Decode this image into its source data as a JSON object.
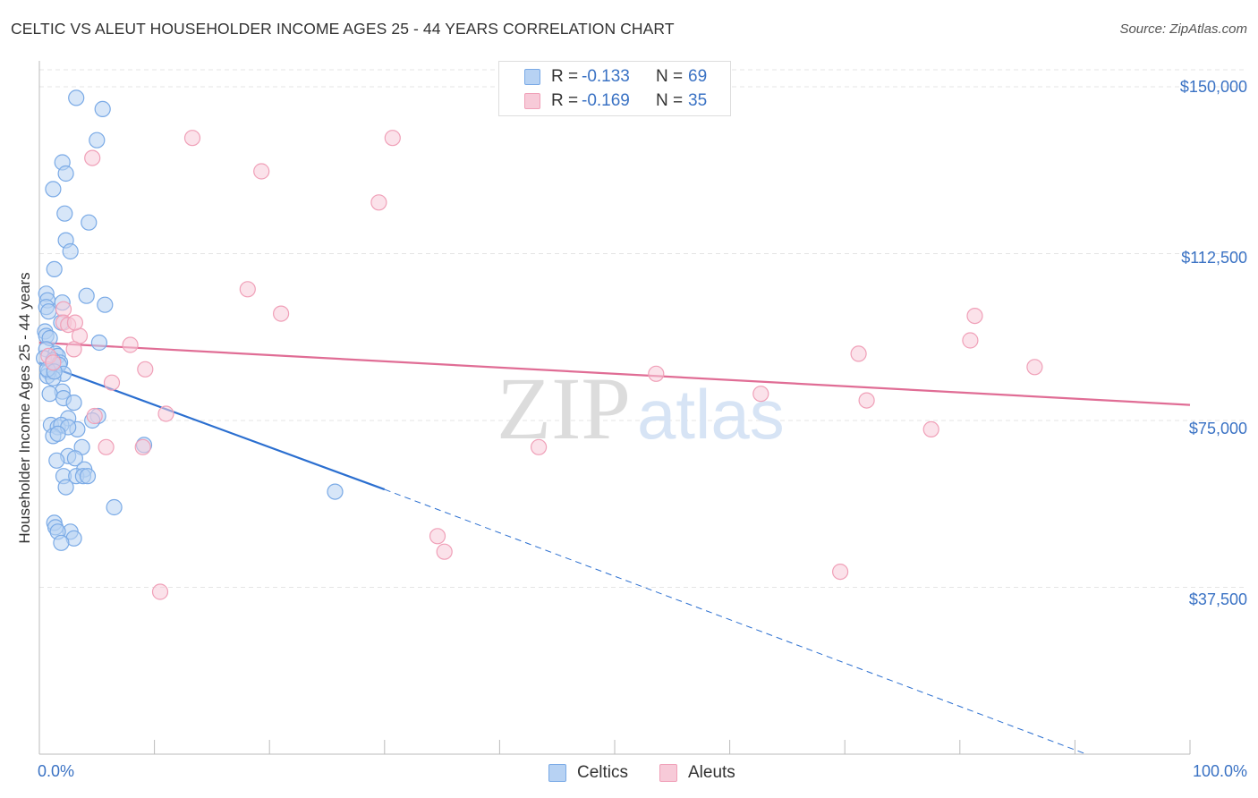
{
  "chart_data": {
    "type": "scatter",
    "title": "CELTIC VS ALEUT HOUSEHOLDER INCOME AGES 25 - 44 YEARS CORRELATION CHART",
    "source": "Source: ZipAtlas.com",
    "xlabel": "",
    "ylabel": "Householder Income Ages 25 - 44 years",
    "xlim": [
      0,
      100
    ],
    "ylim": [
      0,
      155000
    ],
    "x_tick_labels": [
      "0.0%",
      "100.0%"
    ],
    "y_ticks": [
      37500,
      75000,
      112500,
      150000
    ],
    "y_tick_labels": [
      "$37,500",
      "$75,000",
      "$112,500",
      "$150,000"
    ],
    "grid": true,
    "watermark": "ZIPatlas",
    "legend": {
      "top": [
        {
          "r_label": "R =",
          "r_value": "-0.133",
          "n_label": "N =",
          "n_value": "69"
        },
        {
          "r_label": "R =",
          "r_value": "-0.169",
          "n_label": "N =",
          "n_value": "35"
        }
      ],
      "bottom": [
        "Celtics",
        "Aleuts"
      ]
    },
    "series": [
      {
        "name": "Celtics",
        "color": "#7aaae6",
        "fill": "#b7d2f3",
        "line_color": "#2b6fd0",
        "trend": {
          "x0": 0,
          "y0": 88000,
          "x1": 30,
          "y1": 59500,
          "dashed_to": {
            "x": 91,
            "y": 0
          }
        },
        "points": [
          [
            3.2,
            147500
          ],
          [
            5.5,
            145000
          ],
          [
            5,
            138000
          ],
          [
            2,
            133000
          ],
          [
            2.3,
            130500
          ],
          [
            1.2,
            127000
          ],
          [
            2.2,
            121500
          ],
          [
            4.3,
            119500
          ],
          [
            2.3,
            115500
          ],
          [
            2.7,
            113000
          ],
          [
            1.3,
            109000
          ],
          [
            0.6,
            103500
          ],
          [
            4.1,
            103000
          ],
          [
            0.7,
            102000
          ],
          [
            2,
            101500
          ],
          [
            5.7,
            101000
          ],
          [
            0.6,
            100500
          ],
          [
            0.8,
            99500
          ],
          [
            1.9,
            97000
          ],
          [
            0.5,
            95000
          ],
          [
            0.6,
            94000
          ],
          [
            0.9,
            93500
          ],
          [
            5.2,
            92500
          ],
          [
            0.6,
            91000
          ],
          [
            1.4,
            90000
          ],
          [
            1.6,
            89500
          ],
          [
            0.4,
            89000
          ],
          [
            1.2,
            88500
          ],
          [
            1.8,
            88000
          ],
          [
            1.7,
            87500
          ],
          [
            0.8,
            86000
          ],
          [
            2.1,
            85500
          ],
          [
            0.7,
            85000
          ],
          [
            1.2,
            84500
          ],
          [
            2,
            81500
          ],
          [
            0.9,
            81000
          ],
          [
            2.1,
            80000
          ],
          [
            3,
            79000
          ],
          [
            5.1,
            76000
          ],
          [
            2.5,
            75500
          ],
          [
            4.6,
            75000
          ],
          [
            1,
            74000
          ],
          [
            1.6,
            73500
          ],
          [
            1.9,
            74000
          ],
          [
            3.3,
            73000
          ],
          [
            2.5,
            73500
          ],
          [
            1.2,
            71500
          ],
          [
            1.6,
            72000
          ],
          [
            9.1,
            69500
          ],
          [
            3.7,
            69000
          ],
          [
            2.5,
            67000
          ],
          [
            3.1,
            66500
          ],
          [
            1.5,
            66000
          ],
          [
            3.9,
            64000
          ],
          [
            2.1,
            62500
          ],
          [
            3.2,
            62500
          ],
          [
            3.8,
            62500
          ],
          [
            4.2,
            62500
          ],
          [
            2.3,
            60000
          ],
          [
            25.7,
            59000
          ],
          [
            6.5,
            55500
          ],
          [
            1.3,
            52000
          ],
          [
            1.4,
            51000
          ],
          [
            2.7,
            50000
          ],
          [
            1.6,
            50000
          ],
          [
            3,
            48500
          ],
          [
            1.9,
            47500
          ],
          [
            0.7,
            86500
          ],
          [
            1.3,
            86000
          ]
        ]
      },
      {
        "name": "Aleuts",
        "color": "#f0a0b8",
        "fill": "#f7cad8",
        "line_color": "#e06d95",
        "trend": {
          "x0": 0,
          "y0": 92500,
          "x1": 100,
          "y1": 78500
        },
        "points": [
          [
            13.3,
            138500
          ],
          [
            30.7,
            138500
          ],
          [
            4.6,
            134000
          ],
          [
            19.3,
            131000
          ],
          [
            29.5,
            124000
          ],
          [
            18.1,
            104500
          ],
          [
            2.1,
            100000
          ],
          [
            21,
            99000
          ],
          [
            81.3,
            98500
          ],
          [
            2.1,
            97000
          ],
          [
            2.5,
            96500
          ],
          [
            3.5,
            94000
          ],
          [
            7.9,
            92000
          ],
          [
            3,
            91000
          ],
          [
            71.2,
            90000
          ],
          [
            0.8,
            89500
          ],
          [
            1.2,
            88000
          ],
          [
            9.2,
            86500
          ],
          [
            86.5,
            87000
          ],
          [
            53.6,
            85500
          ],
          [
            6.3,
            83500
          ],
          [
            62.7,
            81000
          ],
          [
            71.9,
            79500
          ],
          [
            11,
            76500
          ],
          [
            4.8,
            76000
          ],
          [
            77.5,
            73000
          ],
          [
            5.8,
            69000
          ],
          [
            9,
            69000
          ],
          [
            43.4,
            69000
          ],
          [
            34.6,
            49000
          ],
          [
            35.2,
            45500
          ],
          [
            69.6,
            41000
          ],
          [
            10.5,
            36500
          ],
          [
            3.1,
            97000
          ],
          [
            80.9,
            93000
          ]
        ]
      }
    ]
  }
}
